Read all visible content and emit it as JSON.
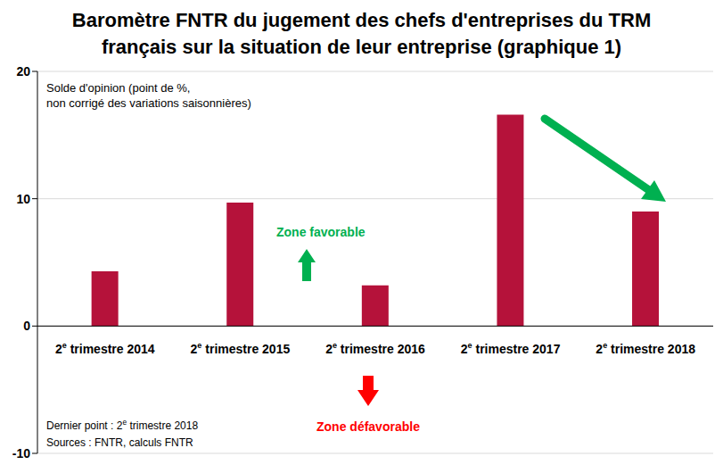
{
  "chart_data": {
    "type": "bar",
    "title": "Baromètre FNTR du jugement des chefs d'entreprises du TRM français sur la situation de leur entreprise (graphique 1)",
    "categories": [
      "2e trimestre 2014",
      "2e trimestre 2015",
      "2e trimestre 2016",
      "2e trimestre 2017",
      "2e trimestre 2018"
    ],
    "values": [
      4.3,
      9.7,
      3.2,
      16.6,
      9.0
    ],
    "color": "#b5123a",
    "ylim": [
      -10,
      20
    ],
    "yticks": [
      -10,
      0,
      10,
      20
    ],
    "grid": true,
    "annotations": {
      "unit": [
        "Solde d'opinion (point de %,",
        "non corrigé des variations saisonnières)"
      ],
      "favorable": "Zone favorable",
      "unfavorable": "Zone défavorable",
      "note": [
        "Dernier point : 2e trimestre 2018",
        "Sources : FNTR, calculs FNTR"
      ]
    }
  }
}
